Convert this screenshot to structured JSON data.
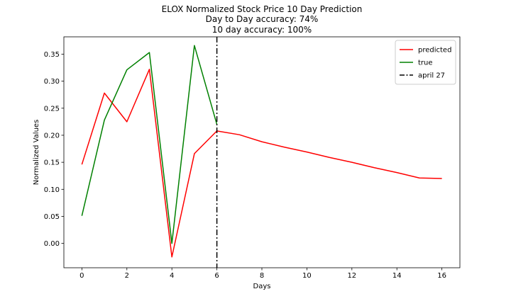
{
  "chart_data": {
    "type": "line",
    "title_lines": [
      "ELOX Normalized Stock Price 10 Day Prediction",
      "Day to Day accuracy: 74%",
      "10 day accuracy: 100%"
    ],
    "xlabel": "Days",
    "ylabel": "Normalized Values",
    "xlim": [
      -0.8,
      16.8
    ],
    "ylim": [
      -0.045,
      0.382
    ],
    "xticks": [
      0,
      2,
      4,
      6,
      8,
      10,
      12,
      14,
      16
    ],
    "xtick_labels": [
      "0",
      "2",
      "4",
      "6",
      "8",
      "10",
      "12",
      "14",
      "16"
    ],
    "yticks": [
      0.0,
      0.05,
      0.1,
      0.15,
      0.2,
      0.25,
      0.3,
      0.35
    ],
    "ytick_labels": [
      "0.00",
      "0.05",
      "0.10",
      "0.15",
      "0.20",
      "0.25",
      "0.30",
      "0.35"
    ],
    "grid": false,
    "legend_position": "top-right",
    "series": [
      {
        "name": "predicted",
        "color": "#ff0000",
        "style": "solid",
        "x": [
          0,
          1,
          2,
          3,
          4,
          5,
          6,
          7,
          8,
          9,
          10,
          11,
          12,
          13,
          14,
          15,
          16
        ],
        "y": [
          0.146,
          0.278,
          0.225,
          0.322,
          -0.025,
          0.166,
          0.208,
          0.201,
          0.188,
          0.178,
          0.169,
          0.159,
          0.15,
          0.14,
          0.131,
          0.121,
          0.12
        ]
      },
      {
        "name": "true",
        "color": "#008000",
        "style": "solid",
        "x": [
          0,
          1,
          2,
          3,
          4,
          5,
          6
        ],
        "y": [
          0.051,
          0.228,
          0.321,
          0.353,
          0.0,
          0.366,
          0.22
        ]
      }
    ],
    "vlines": [
      {
        "name": "april 27",
        "x": 6,
        "color": "#000000",
        "style": "dashdot"
      }
    ]
  }
}
